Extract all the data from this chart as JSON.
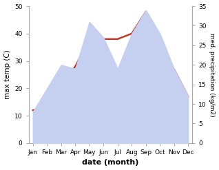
{
  "months": [
    "Jan",
    "Feb",
    "Mar",
    "Apr",
    "May",
    "Jun",
    "Jul",
    "Aug",
    "Sep",
    "Oct",
    "Nov",
    "Dec"
  ],
  "month_positions": [
    0,
    1,
    2,
    3,
    4,
    5,
    6,
    7,
    8,
    9,
    10,
    11
  ],
  "temp_max": [
    12,
    13,
    21,
    28,
    38,
    38,
    38,
    40,
    48,
    27,
    27,
    17
  ],
  "precipitation": [
    8,
    14,
    20,
    19,
    31,
    27,
    19,
    28,
    34,
    28,
    19,
    12
  ],
  "temp_color": "#c0392b",
  "precip_fill_color": "#c5cff0",
  "precip_line_color": "#c5cff0",
  "temp_ylim": [
    0,
    50
  ],
  "precip_ylim": [
    0,
    35
  ],
  "temp_yticks": [
    0,
    10,
    20,
    30,
    40,
    50
  ],
  "precip_yticks": [
    0,
    5,
    10,
    15,
    20,
    25,
    30,
    35
  ],
  "xlabel": "date (month)",
  "ylabel_left": "max temp (C)",
  "ylabel_right": "med. precipitation (kg/m2)",
  "background_color": "#ffffff",
  "spine_color": "#aaaaaa",
  "tick_label_size": 6.5,
  "ylabel_left_size": 7.5,
  "ylabel_right_size": 6.5,
  "xlabel_size": 8
}
